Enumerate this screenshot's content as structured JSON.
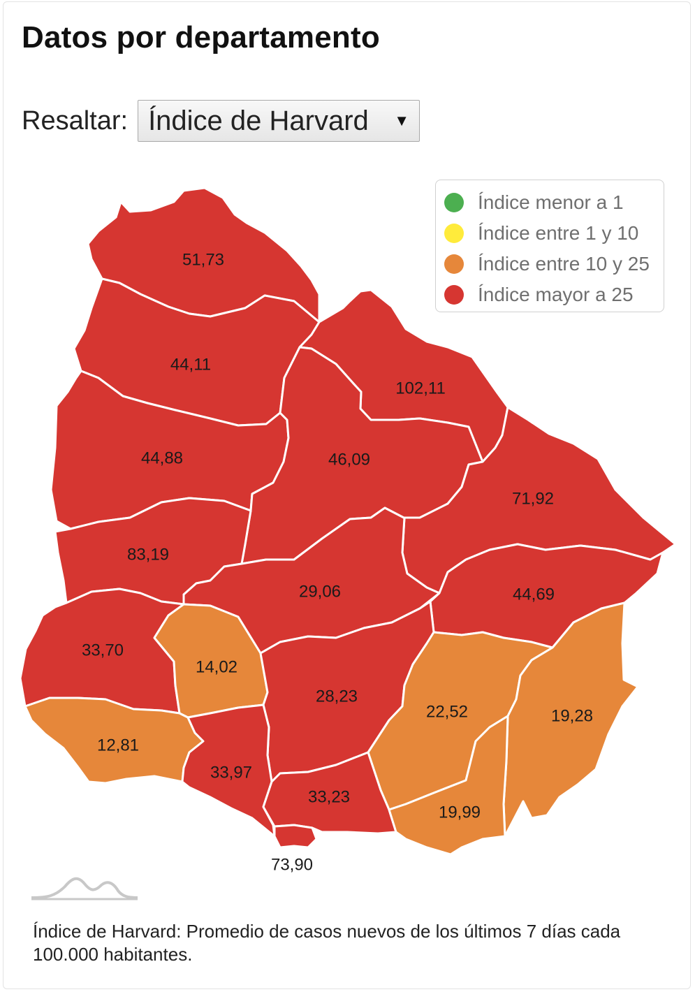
{
  "title": "Datos por departamento",
  "highlight": {
    "label": "Resaltar:",
    "selected": "Índice de Harvard"
  },
  "colors": {
    "green": "#4caf50",
    "yellow": "#ffeb3b",
    "orange": "#e6873a",
    "red": "#d63631"
  },
  "legend": [
    {
      "label": "Índice menor a 1",
      "color": "#4caf50"
    },
    {
      "label": "Índice entre 1 y 10",
      "color": "#ffeb3b"
    },
    {
      "label": "Índice entre 10 y 25",
      "color": "#e6873a"
    },
    {
      "label": "Índice mayor a 25",
      "color": "#d63631"
    }
  ],
  "departments": [
    {
      "key": "artigas",
      "value": "51,73",
      "category": "red"
    },
    {
      "key": "salto",
      "value": "44,11",
      "category": "red"
    },
    {
      "key": "rivera",
      "value": "102,11",
      "category": "red"
    },
    {
      "key": "paysandu",
      "value": "44,88",
      "category": "red"
    },
    {
      "key": "tacuarembo",
      "value": "46,09",
      "category": "red"
    },
    {
      "key": "cerro-largo",
      "value": "71,92",
      "category": "red"
    },
    {
      "key": "rio-negro",
      "value": "83,19",
      "category": "red"
    },
    {
      "key": "durazno",
      "value": "29,06",
      "category": "red"
    },
    {
      "key": "treinta-y-tres",
      "value": "44,69",
      "category": "red"
    },
    {
      "key": "soriano",
      "value": "33,70",
      "category": "red"
    },
    {
      "key": "flores",
      "value": "14,02",
      "category": "orange"
    },
    {
      "key": "florida",
      "value": "28,23",
      "category": "red"
    },
    {
      "key": "lavalleja",
      "value": "22,52",
      "category": "orange"
    },
    {
      "key": "rocha",
      "value": "19,28",
      "category": "orange"
    },
    {
      "key": "colonia",
      "value": "12,81",
      "category": "orange"
    },
    {
      "key": "san-jose",
      "value": "33,97",
      "category": "red"
    },
    {
      "key": "canelones",
      "value": "33,23",
      "category": "red"
    },
    {
      "key": "maldonado",
      "value": "19,99",
      "category": "orange"
    },
    {
      "key": "montevideo",
      "value": "73,90",
      "category": "red"
    }
  ],
  "footnote": "Índice de Harvard: Promedio de casos nuevos de los últimos 7 días cada 100.000 habitantes.",
  "icons": {
    "logo": "mountain-wave-logo-icon",
    "dropdown": "triangle-down-icon"
  }
}
